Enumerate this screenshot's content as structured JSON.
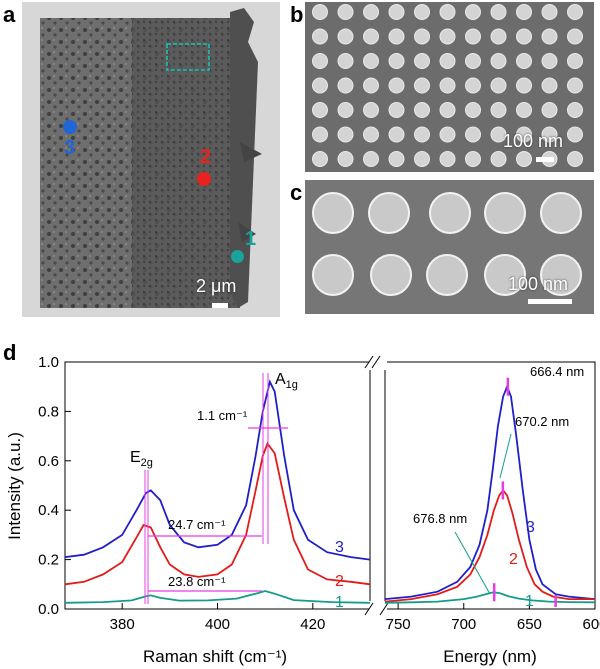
{
  "panels": {
    "a": {
      "letter": "a",
      "scale": "2 μm",
      "markers": [
        {
          "label": "1",
          "color": "#1aa39a"
        },
        {
          "label": "2",
          "color": "#e8231f"
        },
        {
          "label": "3",
          "color": "#2166d6"
        }
      ]
    },
    "b": {
      "letter": "b",
      "scale": "100 nm"
    },
    "c": {
      "letter": "c",
      "scale": "100 nm"
    },
    "d": {
      "letter": "d"
    }
  },
  "colors": {
    "blue": "#1f1fc8",
    "red": "#e21b1b",
    "teal": "#159b8c",
    "magenta": "#e63ce6"
  },
  "chart_data": [
    {
      "type": "line",
      "title": "",
      "xlabel": "Raman shift (cm⁻¹)",
      "ylabel": "Intensity (a.u.)",
      "xlim": [
        368,
        432
      ],
      "ylim": [
        0,
        1.0
      ],
      "xticks": [
        380,
        400,
        420
      ],
      "yticks": [
        0.0,
        0.2,
        0.4,
        0.6,
        0.8,
        1.0
      ],
      "peak_labels": {
        "E2g": "E",
        "E2g_sub": "2g",
        "A1g": "A",
        "A1g_sub": "1g"
      },
      "annotations": [
        "1.1 cm⁻¹",
        "24.7 cm⁻¹",
        "23.8 cm⁻¹"
      ],
      "series": [
        {
          "name": "3",
          "color": "#1f1fc8",
          "x": [
            368,
            372,
            376,
            380,
            383,
            385,
            386,
            388,
            390,
            393,
            396,
            400,
            403,
            406,
            408,
            409.5,
            411,
            412,
            414,
            416,
            419,
            423,
            428,
            432
          ],
          "y": [
            0.21,
            0.22,
            0.25,
            0.3,
            0.4,
            0.47,
            0.48,
            0.44,
            0.34,
            0.27,
            0.25,
            0.26,
            0.3,
            0.42,
            0.62,
            0.8,
            0.92,
            0.88,
            0.62,
            0.4,
            0.28,
            0.23,
            0.21,
            0.2
          ]
        },
        {
          "name": "2",
          "color": "#e21b1b",
          "x": [
            368,
            372,
            376,
            380,
            383,
            384.5,
            386,
            388,
            390,
            393,
            396,
            400,
            403,
            406,
            408,
            409.5,
            410.5,
            412,
            414,
            416,
            419,
            423,
            428,
            432
          ],
          "y": [
            0.1,
            0.11,
            0.14,
            0.19,
            0.29,
            0.34,
            0.33,
            0.25,
            0.18,
            0.14,
            0.13,
            0.14,
            0.18,
            0.3,
            0.48,
            0.62,
            0.67,
            0.63,
            0.45,
            0.28,
            0.16,
            0.12,
            0.11,
            0.1
          ]
        },
        {
          "name": "1",
          "color": "#159b8c",
          "x": [
            368,
            376,
            382,
            385,
            386,
            388,
            392,
            398,
            404,
            408,
            410,
            412,
            416,
            424,
            432
          ],
          "y": [
            0.025,
            0.028,
            0.035,
            0.052,
            0.055,
            0.045,
            0.034,
            0.035,
            0.042,
            0.062,
            0.073,
            0.062,
            0.036,
            0.028,
            0.025
          ]
        }
      ]
    },
    {
      "type": "line",
      "title": "",
      "xlabel": "Energy (nm)",
      "xlim": [
        760,
        600
      ],
      "ylim": [
        0,
        1.0
      ],
      "xticks": [
        750,
        700,
        650,
        600
      ],
      "annotations": [
        "666.4 nm",
        "670.2 nm",
        "676.8 nm"
      ],
      "series": [
        {
          "name": "3",
          "color": "#1f1fc8",
          "x": [
            760,
            740,
            720,
            705,
            695,
            688,
            682,
            678,
            674,
            670,
            667,
            664,
            660,
            655,
            650,
            645,
            640,
            630,
            620,
            600
          ],
          "y": [
            0.04,
            0.05,
            0.07,
            0.11,
            0.17,
            0.26,
            0.4,
            0.56,
            0.74,
            0.86,
            0.9,
            0.86,
            0.7,
            0.48,
            0.28,
            0.16,
            0.1,
            0.06,
            0.05,
            0.04
          ]
        },
        {
          "name": "2",
          "color": "#e21b1b",
          "x": [
            760,
            740,
            720,
            705,
            695,
            688,
            682,
            677,
            673,
            670,
            667,
            663,
            658,
            652,
            646,
            640,
            632,
            620,
            600
          ],
          "y": [
            0.03,
            0.04,
            0.06,
            0.09,
            0.14,
            0.21,
            0.3,
            0.4,
            0.46,
            0.48,
            0.46,
            0.39,
            0.28,
            0.17,
            0.1,
            0.07,
            0.05,
            0.04,
            0.04
          ]
        },
        {
          "name": "1",
          "color": "#159b8c",
          "x": [
            760,
            740,
            720,
            700,
            690,
            682,
            677,
            672,
            666,
            658,
            648,
            635,
            620,
            600
          ],
          "y": [
            0.025,
            0.027,
            0.03,
            0.04,
            0.05,
            0.062,
            0.068,
            0.063,
            0.052,
            0.042,
            0.035,
            0.03,
            0.028,
            0.027
          ]
        }
      ]
    }
  ]
}
